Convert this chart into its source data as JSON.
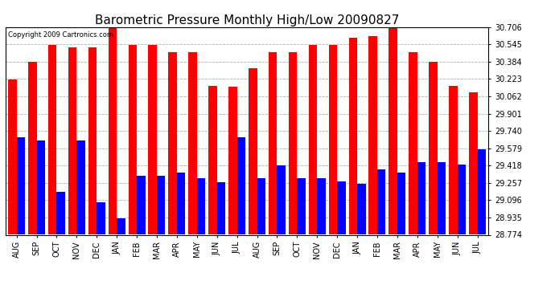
{
  "title": "Barometric Pressure Monthly High/Low 20090827",
  "copyright": "Copyright 2009 Cartronics.com",
  "months": [
    "AUG",
    "SEP",
    "OCT",
    "NOV",
    "DEC",
    "JAN",
    "FEB",
    "MAR",
    "APR",
    "MAY",
    "JUN",
    "JUL",
    "AUG",
    "SEP",
    "OCT",
    "NOV",
    "DEC",
    "JAN",
    "FEB",
    "MAR",
    "APR",
    "MAY",
    "JUN",
    "JUL"
  ],
  "highs": [
    30.22,
    30.38,
    30.54,
    30.52,
    30.52,
    30.7,
    30.54,
    30.54,
    30.47,
    30.47,
    30.16,
    30.15,
    30.32,
    30.47,
    30.47,
    30.54,
    30.54,
    30.61,
    30.62,
    30.7,
    30.47,
    30.38,
    30.16,
    30.1
  ],
  "lows": [
    29.68,
    29.65,
    29.17,
    29.65,
    29.08,
    28.93,
    29.32,
    29.32,
    29.35,
    29.3,
    29.26,
    29.68,
    29.3,
    29.42,
    29.3,
    29.3,
    29.27,
    29.25,
    29.38,
    29.35,
    29.45,
    29.45,
    29.43,
    29.57
  ],
  "ylim_min": 28.774,
  "ylim_max": 30.706,
  "yticks": [
    28.774,
    28.935,
    29.096,
    29.257,
    29.418,
    29.579,
    29.74,
    29.901,
    30.062,
    30.223,
    30.384,
    30.545,
    30.706
  ],
  "bar_color_high": "#ff0000",
  "bar_color_low": "#0000ff",
  "background_color": "#ffffff",
  "grid_color": "#b0b0b0",
  "title_fontsize": 11,
  "tick_fontsize": 7,
  "bar_width": 0.42
}
